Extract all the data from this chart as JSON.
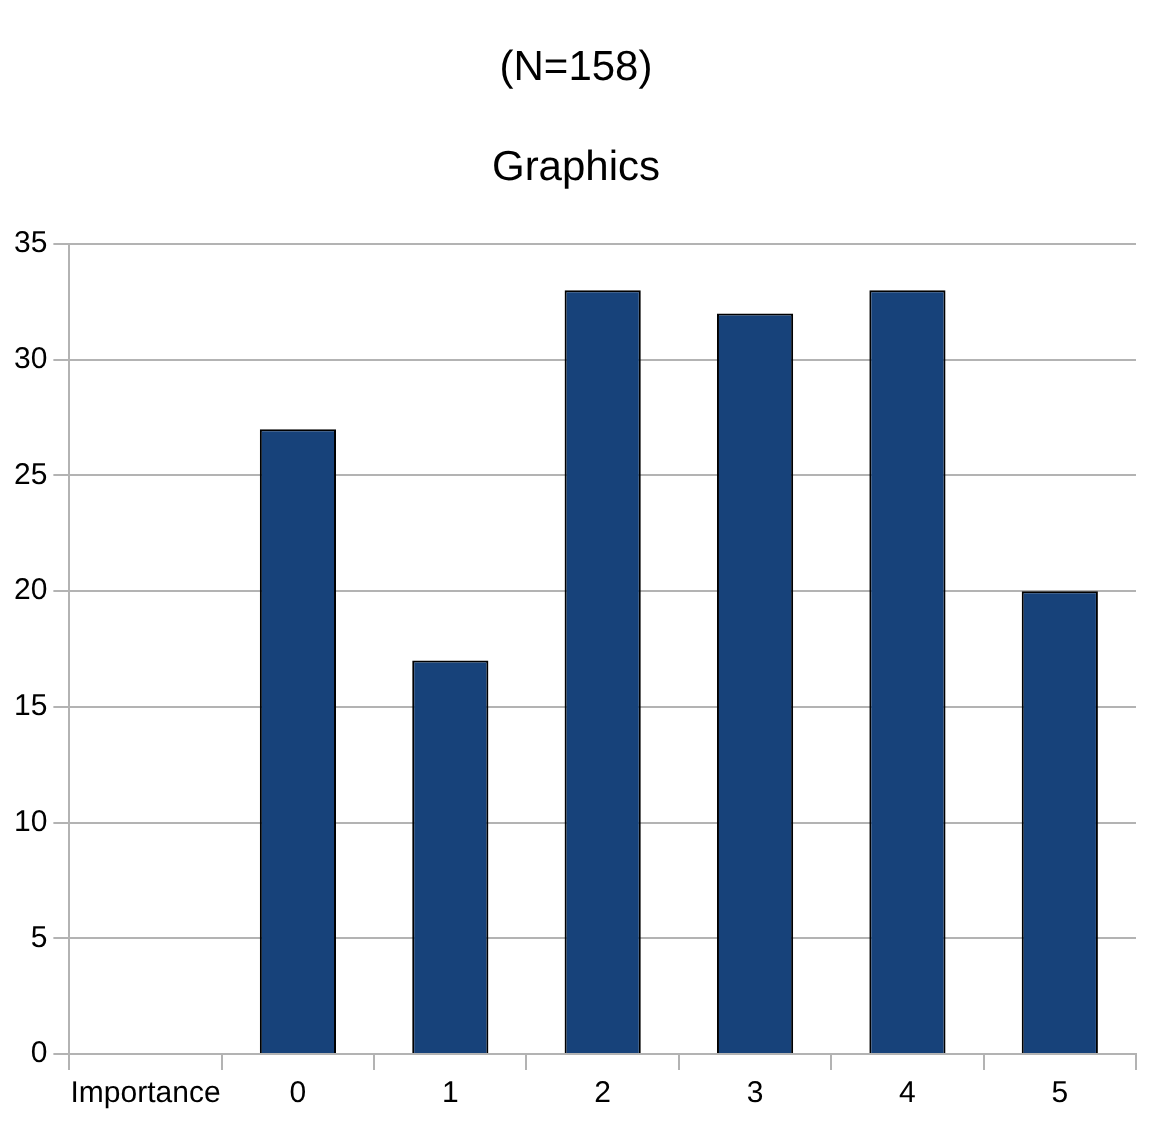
{
  "chart_data": {
    "type": "bar",
    "title": "Graphics",
    "subtitle": "(N=158)",
    "categories": [
      "Importance",
      "0",
      "1",
      "2",
      "3",
      "4",
      "5"
    ],
    "values": [
      null,
      27,
      17,
      33,
      32,
      33,
      20
    ],
    "color": "#17427a",
    "ylim": [
      0,
      35
    ],
    "yticks": [
      0,
      5,
      10,
      15,
      20,
      25,
      30,
      35
    ],
    "grid": "y",
    "legend": false
  }
}
